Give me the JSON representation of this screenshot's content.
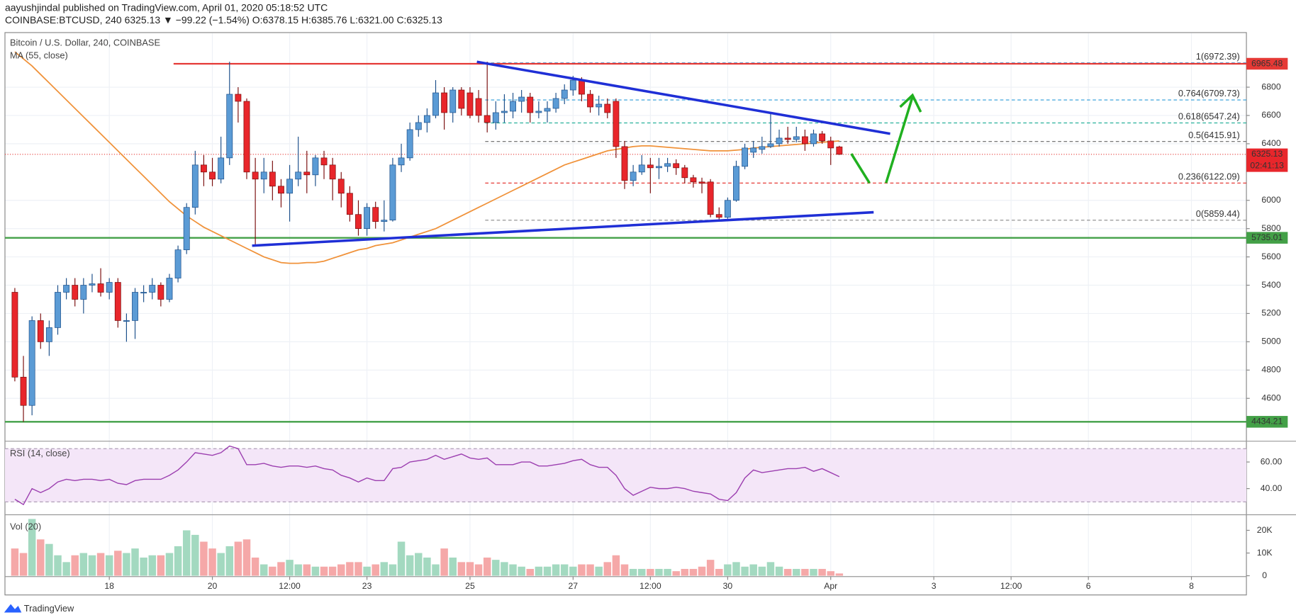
{
  "header": {
    "line1": "aayushjindal published on TradingView.com, April 01, 2020 05:18:52 UTC",
    "line2": "COINBASE:BTCUSD, 240  6325.13 ▼ −99.22 (−1.54%)  O:6378.15 H:6385.76 L:6321.00 C:6325.13"
  },
  "footer": {
    "brand": "TradingView"
  },
  "chart_data": {
    "type": "candlestick",
    "title": "Bitcoin / U.S. Dollar, 240, COINBASE",
    "ma_label": "MA (55, close)",
    "up_color": "#5b9bd5",
    "down_color": "#e8262b",
    "ma_color": "#f0923a",
    "ylim": [
      4303,
      7180
    ],
    "yticks": [
      4600,
      4800,
      5000,
      5200,
      5400,
      5600,
      5800,
      6000,
      6400,
      6600,
      6800
    ],
    "xlim": [
      -1.15,
      143.4
    ],
    "xticks": [
      {
        "value": 11,
        "label": "18"
      },
      {
        "value": 23,
        "label": "20"
      },
      {
        "value": 32,
        "label": "12:00"
      },
      {
        "value": 41,
        "label": "23"
      },
      {
        "value": 53,
        "label": "25"
      },
      {
        "value": 65,
        "label": "27"
      },
      {
        "value": 74,
        "label": "12:00"
      },
      {
        "value": 83,
        "label": "30"
      },
      {
        "value": 95,
        "label": "Apr"
      },
      {
        "value": 107,
        "label": "3"
      },
      {
        "value": 116,
        "label": "12:00"
      },
      {
        "value": 125,
        "label": "6"
      },
      {
        "value": 137,
        "label": "8"
      }
    ],
    "grid": true,
    "ohlc": [
      [
        5350,
        5380,
        4720,
        4750
      ],
      [
        4750,
        4900,
        4434,
        4550
      ],
      [
        4550,
        5180,
        4480,
        5150
      ],
      [
        5150,
        5200,
        4950,
        5000
      ],
      [
        5000,
        5150,
        4900,
        5100
      ],
      [
        5100,
        5400,
        5050,
        5350
      ],
      [
        5350,
        5450,
        5300,
        5400
      ],
      [
        5400,
        5450,
        5250,
        5300
      ],
      [
        5300,
        5450,
        5200,
        5400
      ],
      [
        5400,
        5480,
        5350,
        5410
      ],
      [
        5410,
        5520,
        5320,
        5350
      ],
      [
        5350,
        5450,
        5300,
        5420
      ],
      [
        5420,
        5450,
        5100,
        5150
      ],
      [
        5150,
        5200,
        5000,
        5150
      ],
      [
        5150,
        5380,
        5020,
        5350
      ],
      [
        5350,
        5400,
        5280,
        5350
      ],
      [
        5350,
        5450,
        5300,
        5400
      ],
      [
        5400,
        5420,
        5250,
        5300
      ],
      [
        5300,
        5480,
        5280,
        5450
      ],
      [
        5450,
        5680,
        5420,
        5650
      ],
      [
        5650,
        5980,
        5620,
        5950
      ],
      [
        5950,
        6350,
        5900,
        6250
      ],
      [
        6250,
        6320,
        6100,
        6200
      ],
      [
        6200,
        6300,
        6100,
        6150
      ],
      [
        6150,
        6450,
        6120,
        6300
      ],
      [
        6300,
        6980,
        6250,
        6750
      ],
      [
        6750,
        6800,
        6550,
        6700
      ],
      [
        6700,
        6720,
        6150,
        6200
      ],
      [
        6200,
        6300,
        5680,
        6150
      ],
      [
        6150,
        6300,
        6050,
        6200
      ],
      [
        6200,
        6280,
        6000,
        6100
      ],
      [
        6100,
        6150,
        5950,
        6050
      ],
      [
        6050,
        6250,
        5850,
        6150
      ],
      [
        6150,
        6450,
        6100,
        6200
      ],
      [
        6200,
        6350,
        6050,
        6180
      ],
      [
        6180,
        6320,
        6100,
        6300
      ],
      [
        6300,
        6350,
        6150,
        6250
      ],
      [
        6250,
        6300,
        6000,
        6150
      ],
      [
        6150,
        6200,
        5950,
        6050
      ],
      [
        6050,
        6100,
        5850,
        5900
      ],
      [
        5900,
        6000,
        5750,
        5800
      ],
      [
        5800,
        5980,
        5750,
        5950
      ],
      [
        5950,
        5990,
        5800,
        5850
      ],
      [
        5850,
        6000,
        5780,
        5860
      ],
      [
        5860,
        6300,
        5850,
        6250
      ],
      [
        6250,
        6400,
        6200,
        6300
      ],
      [
        6300,
        6550,
        6280,
        6500
      ],
      [
        6500,
        6600,
        6450,
        6550
      ],
      [
        6550,
        6650,
        6480,
        6600
      ],
      [
        6600,
        6850,
        6580,
        6760
      ],
      [
        6760,
        6800,
        6500,
        6620
      ],
      [
        6620,
        6800,
        6550,
        6780
      ],
      [
        6780,
        6800,
        6600,
        6650
      ],
      [
        6760,
        6800,
        6580,
        6600
      ],
      [
        6720,
        6780,
        6550,
        6600
      ],
      [
        6600,
        6980,
        6480,
        6550
      ],
      [
        6550,
        6700,
        6500,
        6620
      ],
      [
        6620,
        6750,
        6550,
        6630
      ],
      [
        6630,
        6760,
        6580,
        6700
      ],
      [
        6700,
        6780,
        6620,
        6730
      ],
      [
        6730,
        6760,
        6550,
        6620
      ],
      [
        6620,
        6700,
        6580,
        6630
      ],
      [
        6630,
        6700,
        6550,
        6650
      ],
      [
        6650,
        6760,
        6620,
        6720
      ],
      [
        6720,
        6820,
        6680,
        6780
      ],
      [
        6780,
        6880,
        6740,
        6850
      ],
      [
        6850,
        6870,
        6700,
        6750
      ],
      [
        6750,
        6780,
        6620,
        6660
      ],
      [
        6660,
        6740,
        6600,
        6680
      ],
      [
        6680,
        6720,
        6580,
        6620
      ],
      [
        6700,
        6720,
        6300,
        6380
      ],
      [
        6380,
        6420,
        6080,
        6140
      ],
      [
        6140,
        6250,
        6100,
        6200
      ],
      [
        6200,
        6320,
        6180,
        6250
      ],
      [
        6250,
        6300,
        6050,
        6230
      ],
      [
        6230,
        6300,
        6150,
        6240
      ],
      [
        6240,
        6300,
        6200,
        6260
      ],
      [
        6260,
        6290,
        6180,
        6230
      ],
      [
        6230,
        6250,
        6120,
        6160
      ],
      [
        6160,
        6180,
        6090,
        6130
      ],
      [
        6130,
        6160,
        6050,
        6120
      ],
      [
        6130,
        6150,
        5880,
        5900
      ],
      [
        5900,
        5950,
        5860,
        5880
      ],
      [
        5880,
        6020,
        5870,
        6000
      ],
      [
        6000,
        6280,
        5990,
        6240
      ],
      [
        6240,
        6400,
        6220,
        6370
      ],
      [
        6340,
        6420,
        6300,
        6370
      ],
      [
        6360,
        6450,
        6330,
        6380
      ],
      [
        6380,
        6620,
        6370,
        6400
      ],
      [
        6400,
        6500,
        6380,
        6440
      ],
      [
        6440,
        6520,
        6400,
        6430
      ],
      [
        6430,
        6520,
        6410,
        6450
      ],
      [
        6450,
        6500,
        6350,
        6400
      ],
      [
        6400,
        6500,
        6380,
        6470
      ],
      [
        6470,
        6490,
        6400,
        6420
      ],
      [
        6420,
        6450,
        6250,
        6370
      ],
      [
        6378.15,
        6385.76,
        6321,
        6325.13
      ]
    ],
    "ma": [
      7050,
      7000,
      6950,
      6890,
      6830,
      6770,
      6710,
      6650,
      6590,
      6530,
      6470,
      6410,
      6350,
      6290,
      6230,
      6170,
      6110,
      6050,
      5990,
      5940,
      5890,
      5850,
      5810,
      5780,
      5750,
      5720,
      5690,
      5660,
      5630,
      5600,
      5580,
      5560,
      5555,
      5555,
      5560,
      5560,
      5570,
      5590,
      5610,
      5630,
      5650,
      5660,
      5680,
      5690,
      5700,
      5720,
      5740,
      5760,
      5780,
      5800,
      5830,
      5860,
      5890,
      5920,
      5950,
      5980,
      6010,
      6040,
      6070,
      6100,
      6130,
      6160,
      6190,
      6220,
      6250,
      6270,
      6290,
      6310,
      6330,
      6350,
      6360,
      6370,
      6380,
      6385,
      6385,
      6380,
      6375,
      6370,
      6365,
      6360,
      6355,
      6350,
      6350,
      6350,
      6355,
      6360,
      6370,
      6375,
      6380,
      6385,
      6390,
      6395,
      6400,
      6405,
      6410,
      6415,
      6420
    ],
    "price_levels": [
      {
        "value": 6965.48,
        "color": "#e53935"
      },
      {
        "value": 5735.01,
        "color": "#43a047"
      },
      {
        "value": 4434.21,
        "color": "#43a047"
      }
    ],
    "last_price": 6325.13,
    "countdown": "02:41:13",
    "fib_values": [
      6972.39,
      6709.73,
      6547.24,
      6415.91,
      6122.09,
      5859.44
    ],
    "fib_labels": [
      "1(6972.39)",
      "0.764(6709.73)",
      "0.618(6547.24)",
      "0.5(6415.91)",
      "0.236(6122.09)",
      "0(5859.44)"
    ],
    "fib_colors": [
      "#64a5d8",
      "#2a9bd8",
      "#26b09a",
      "#666666",
      "#e53935",
      "#888888"
    ],
    "rsi": {
      "label": "RSI (14, close)",
      "color": "#9c3fb0",
      "ylim": [
        21,
        75
      ],
      "band": [
        30,
        70
      ],
      "yticks": [
        {
          "value": 40,
          "label": "40.00"
        },
        {
          "value": 60,
          "label": "60.00"
        }
      ],
      "values": [
        32,
        28,
        40,
        37,
        40,
        45,
        47,
        46,
        47,
        47,
        46,
        47,
        44,
        43,
        46,
        47,
        47,
        47,
        50,
        54,
        60,
        67,
        66,
        65,
        67,
        72,
        70,
        58,
        58,
        59,
        57,
        56,
        57,
        57,
        56,
        57,
        55,
        54,
        50,
        48,
        45,
        48,
        46,
        46,
        55,
        56,
        60,
        61,
        62,
        65,
        62,
        64,
        66,
        63,
        62,
        63,
        58,
        58,
        58,
        60,
        60,
        57,
        57,
        58,
        59,
        61,
        62,
        58,
        56,
        56,
        50,
        40,
        35,
        38,
        41,
        40,
        40,
        41,
        40,
        38,
        37,
        36,
        32,
        31,
        37,
        48,
        54,
        52,
        53,
        54,
        55,
        55,
        56,
        53,
        55,
        52,
        49
      ]
    },
    "volume": {
      "label": "Vol (20)",
      "up_color": "#a3d9c0",
      "down_color": "#f5a8a8",
      "ylim": [
        0,
        26.5
      ],
      "yticks": [
        {
          "value": 0,
          "label": "0"
        },
        {
          "value": 10,
          "label": "10K"
        },
        {
          "value": 20,
          "label": "20K"
        }
      ],
      "values": [
        12,
        10,
        25,
        16,
        14,
        9,
        6,
        9,
        10,
        9,
        10,
        9,
        11,
        10,
        12,
        8,
        9,
        9,
        10,
        13,
        20,
        18,
        15,
        12,
        10,
        13,
        15,
        16,
        8,
        5,
        4,
        6,
        7,
        5,
        5,
        4,
        4,
        4,
        5,
        6,
        6,
        4,
        5,
        6,
        5,
        15,
        9,
        10,
        8,
        5,
        12,
        8,
        6,
        6,
        5,
        8,
        7,
        6,
        5,
        4,
        3,
        4,
        4,
        5,
        5,
        4,
        5,
        5,
        4,
        6,
        9,
        5,
        3,
        3,
        3,
        3,
        3,
        2,
        3,
        3,
        4,
        7,
        3,
        5,
        6,
        4,
        5,
        4,
        6,
        4,
        3,
        3,
        3,
        3,
        3,
        2,
        1
      ]
    }
  }
}
